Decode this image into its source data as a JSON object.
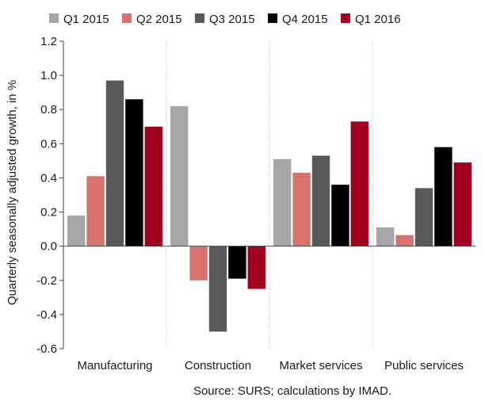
{
  "chart_data": {
    "type": "bar",
    "title": "",
    "xlabel": "",
    "ylabel": "Quarterly seasonally adjusted growth, in %",
    "ylim": [
      -0.6,
      1.2
    ],
    "yticks": [
      1.2,
      1.0,
      0.8,
      0.6,
      0.4,
      0.2,
      0.0,
      -0.2,
      -0.4,
      -0.6
    ],
    "ytick_labels": [
      "1.2",
      "1.0",
      "0.8",
      "0.6",
      "0.4",
      "0.2",
      "0.0",
      "-0.2",
      "-0.4",
      "-0.6"
    ],
    "grid": "vertical dotted separators between categories",
    "legend_position": "top",
    "categories": [
      "Manufacturing",
      "Construction",
      "Market services",
      "Public services"
    ],
    "series": [
      {
        "name": "Q1 2015",
        "color": "#a6a6a6",
        "values": [
          0.18,
          0.82,
          0.51,
          0.11
        ]
      },
      {
        "name": "Q2 2015",
        "color": "#d9726d",
        "values": [
          0.41,
          -0.2,
          0.43,
          0.065
        ]
      },
      {
        "name": "Q3 2015",
        "color": "#595959",
        "values": [
          0.97,
          -0.5,
          0.53,
          0.34
        ]
      },
      {
        "name": "Q4 2015",
        "color": "#000000",
        "values": [
          0.86,
          -0.19,
          0.36,
          0.58
        ]
      },
      {
        "name": "Q1 2016",
        "color": "#a0001e",
        "values": [
          0.7,
          -0.25,
          0.73,
          0.49
        ]
      }
    ],
    "source": "Source: SURS; calculations by IMAD."
  }
}
